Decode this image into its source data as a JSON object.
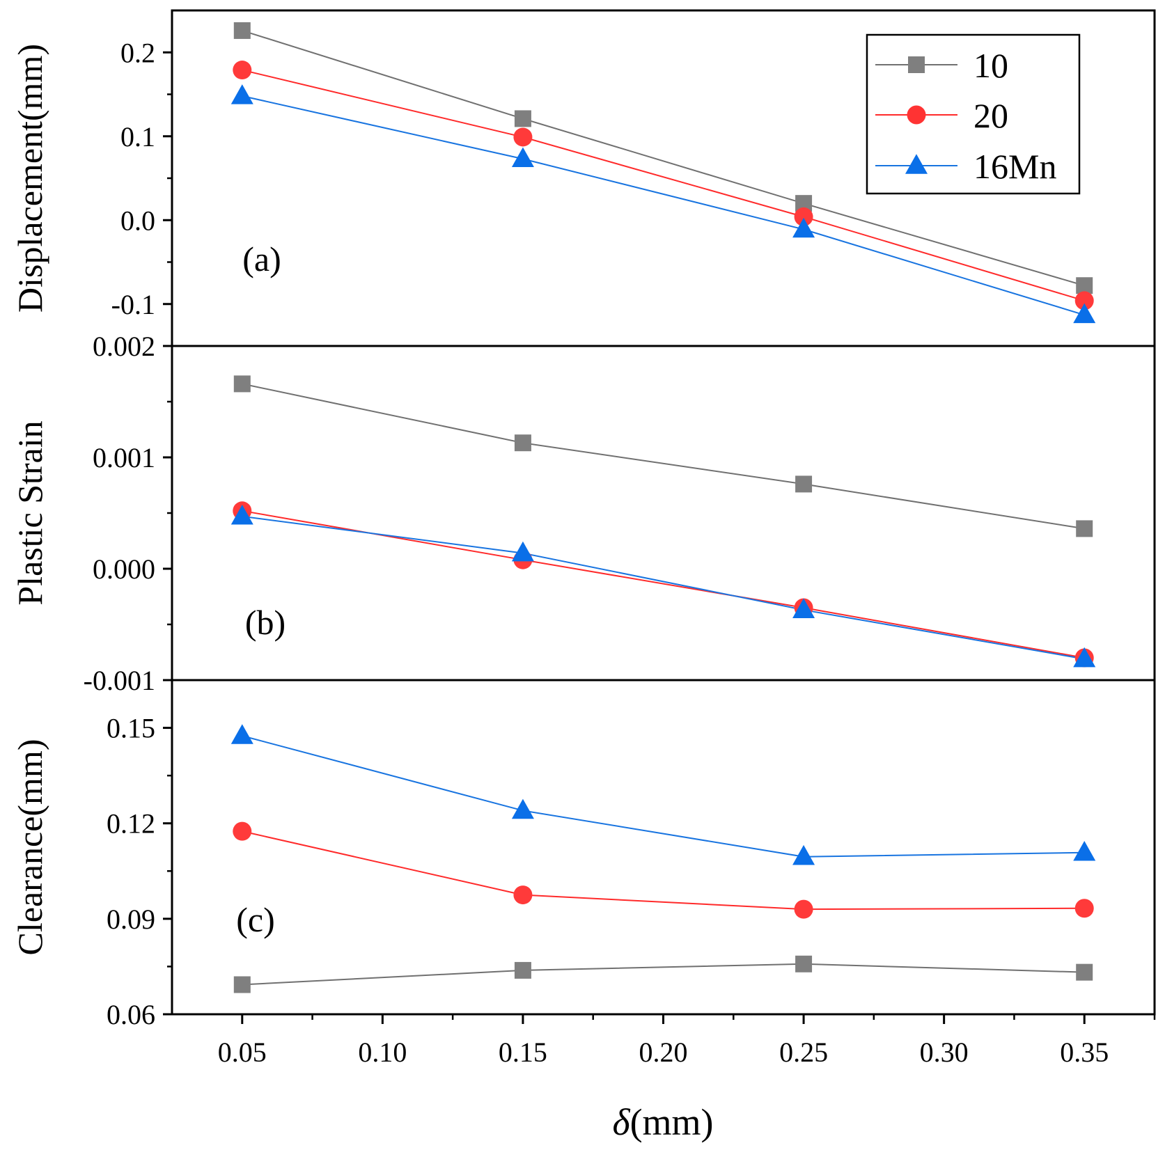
{
  "chart_data": [
    {
      "type": "line",
      "panel_label": "(a)",
      "ylabel": "Displacement(mm)",
      "ylim": [
        -0.15,
        0.25
      ],
      "yticks": [
        -0.1,
        0.0,
        0.1,
        0.2
      ],
      "ytick_labels": [
        "-0.1",
        "0.0",
        "0.1",
        "0.2"
      ],
      "x": [
        0.05,
        0.15,
        0.25,
        0.35
      ],
      "series": [
        {
          "name": "10",
          "values": [
            0.226,
            0.121,
            0.02,
            -0.078
          ]
        },
        {
          "name": "20",
          "values": [
            0.179,
            0.099,
            0.004,
            -0.096
          ]
        },
        {
          "name": "16Mn",
          "values": [
            0.148,
            0.073,
            -0.011,
            -0.113
          ]
        }
      ]
    },
    {
      "type": "line",
      "panel_label": "(b)",
      "ylabel": "Plastic Strain",
      "ylim": [
        -0.001,
        0.002
      ],
      "yticks": [
        -0.001,
        0.0,
        0.001,
        0.002
      ],
      "ytick_labels": [
        "-0.001",
        "0.000",
        "0.001",
        "0.002"
      ],
      "x": [
        0.05,
        0.15,
        0.25,
        0.35
      ],
      "series": [
        {
          "name": "10",
          "values": [
            0.00166,
            0.00113,
            0.00076,
            0.00036
          ]
        },
        {
          "name": "20",
          "values": [
            0.00052,
            8e-05,
            -0.00035,
            -0.0008
          ]
        },
        {
          "name": "16Mn",
          "values": [
            0.00047,
            0.00014,
            -0.00037,
            -0.00081
          ]
        }
      ]
    },
    {
      "type": "line",
      "panel_label": "(c)",
      "ylabel": "Clearance(mm)",
      "ylim": [
        0.06,
        0.165
      ],
      "yticks": [
        0.06,
        0.09,
        0.12,
        0.15
      ],
      "ytick_labels": [
        "0.06",
        "0.09",
        "0.12",
        "0.15"
      ],
      "x": [
        0.05,
        0.15,
        0.25,
        0.35
      ],
      "series": [
        {
          "name": "10",
          "values": [
            0.0693,
            0.0738,
            0.0758,
            0.0732
          ]
        },
        {
          "name": "20",
          "values": [
            0.1175,
            0.0975,
            0.093,
            0.0933
          ]
        },
        {
          "name": "16Mn",
          "values": [
            0.1475,
            0.124,
            0.1095,
            0.1108
          ]
        }
      ]
    }
  ],
  "x_axis": {
    "label_symbol": "δ",
    "label_unit": "(mm)",
    "xlim": [
      0.025,
      0.375
    ],
    "ticks": [
      0.05,
      0.1,
      0.15,
      0.2,
      0.25,
      0.3,
      0.35
    ],
    "tick_labels": [
      "0.05",
      "0.10",
      "0.15",
      "0.20",
      "0.25",
      "0.30",
      "0.35"
    ]
  },
  "legend": {
    "placement": "top-right of panel (a)",
    "entries": [
      {
        "name": "10",
        "color": "#7f7f7f",
        "marker": "square"
      },
      {
        "name": "20",
        "color": "#ff3333",
        "marker": "circle"
      },
      {
        "name": "16Mn",
        "color": "#0a6fe8",
        "marker": "triangle"
      }
    ]
  },
  "styles": {
    "10": {
      "line": "#707070",
      "fill": "#7f7f7f",
      "marker": "square"
    },
    "20": {
      "line": "#ff2a2a",
      "fill": "#ff3a3a",
      "marker": "circle"
    },
    "16Mn": {
      "line": "#1874e0",
      "fill": "#0a6fe8",
      "marker": "triangle"
    }
  }
}
